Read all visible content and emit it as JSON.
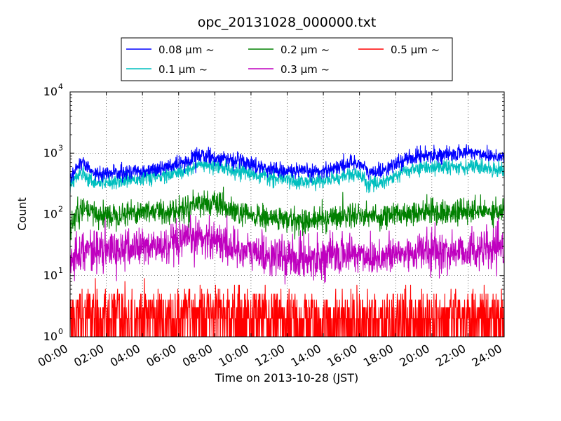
{
  "chart_data": {
    "type": "line",
    "title": "opc_20131028_000000.txt",
    "xlabel": "Time on 2013-10-28 (JST)",
    "ylabel": "Count",
    "x_unit": "hour of day",
    "xlim": [
      0,
      24
    ],
    "ylim": [
      1,
      10000
    ],
    "yscale": "log",
    "grid": true,
    "legend_position": "top (above plot)",
    "legend_columns": 3,
    "x_tick_labels": [
      "00:00",
      "02:00",
      "04:00",
      "06:00",
      "08:00",
      "10:00",
      "12:00",
      "14:00",
      "16:00",
      "18:00",
      "20:00",
      "22:00",
      "24:00"
    ],
    "y_tick_labels": [
      {
        "base": "10",
        "exp": "0"
      },
      {
        "base": "10",
        "exp": "1"
      },
      {
        "base": "10",
        "exp": "2"
      },
      {
        "base": "10",
        "exp": "3"
      },
      {
        "base": "10",
        "exp": "4"
      }
    ],
    "series": [
      {
        "name": "0.08 μm ~",
        "color": "#0000ff",
        "noise": 0.06,
        "x": [
          0,
          0.3,
          0.7,
          1.0,
          1.5,
          2.0,
          2.5,
          3.0,
          3.5,
          4.0,
          4.5,
          5.0,
          5.5,
          6.0,
          6.5,
          7.0,
          7.5,
          8.0,
          8.5,
          9.0,
          9.5,
          10.0,
          10.5,
          11.0,
          11.5,
          12.0,
          12.5,
          13.0,
          13.5,
          14.0,
          14.5,
          15.0,
          15.5,
          16.0,
          16.5,
          17.0,
          17.5,
          18.0,
          18.5,
          19.0,
          19.5,
          20.0,
          20.5,
          21.0,
          21.5,
          22.0,
          22.5,
          23.0,
          23.5,
          24.0
        ],
        "values": [
          380,
          550,
          700,
          550,
          450,
          460,
          480,
          470,
          500,
          520,
          540,
          560,
          600,
          650,
          700,
          950,
          900,
          850,
          800,
          780,
          730,
          660,
          600,
          560,
          530,
          520,
          500,
          490,
          500,
          520,
          560,
          620,
          700,
          690,
          470,
          500,
          560,
          650,
          780,
          860,
          920,
          960,
          940,
          920,
          1000,
          1050,
          1000,
          950,
          900,
          880
        ]
      },
      {
        "name": "0.1 μm ~",
        "color": "#00bfbf",
        "noise": 0.06,
        "x": [
          0,
          0.3,
          0.7,
          1.0,
          1.5,
          2.0,
          2.5,
          3.0,
          3.5,
          4.0,
          4.5,
          5.0,
          5.5,
          6.0,
          6.5,
          7.0,
          7.5,
          8.0,
          8.5,
          9.0,
          9.5,
          10.0,
          10.5,
          11.0,
          11.5,
          12.0,
          12.5,
          13.0,
          13.5,
          14.0,
          14.5,
          15.0,
          15.5,
          16.0,
          16.5,
          17.0,
          17.5,
          18.0,
          18.5,
          19.0,
          19.5,
          20.0,
          20.5,
          21.0,
          21.5,
          22.0,
          22.5,
          23.0,
          23.5,
          24.0
        ],
        "values": [
          290,
          400,
          500,
          380,
          330,
          340,
          360,
          360,
          380,
          400,
          410,
          420,
          440,
          470,
          520,
          650,
          620,
          600,
          570,
          540,
          500,
          460,
          420,
          400,
          380,
          370,
          350,
          340,
          345,
          355,
          380,
          410,
          450,
          430,
          300,
          330,
          360,
          420,
          500,
          550,
          580,
          600,
          590,
          580,
          610,
          620,
          600,
          570,
          550,
          540
        ]
      },
      {
        "name": "0.2 μm ~",
        "color": "#008000",
        "noise": 0.1,
        "x": [
          0,
          0.3,
          0.7,
          1.0,
          1.5,
          2.0,
          2.5,
          3.0,
          3.5,
          4.0,
          4.5,
          5.0,
          5.5,
          6.0,
          6.5,
          7.0,
          7.5,
          8.0,
          8.5,
          9.0,
          9.5,
          10.0,
          10.5,
          11.0,
          11.5,
          12.0,
          12.5,
          13.0,
          13.5,
          14.0,
          14.5,
          15.0,
          15.5,
          16.0,
          16.5,
          17.0,
          17.5,
          18.0,
          18.5,
          19.0,
          19.5,
          20.0,
          20.5,
          21.0,
          21.5,
          22.0,
          22.5,
          23.0,
          23.5,
          24.0
        ],
        "values": [
          70,
          90,
          120,
          110,
          100,
          95,
          100,
          105,
          110,
          112,
          115,
          110,
          112,
          115,
          130,
          160,
          155,
          145,
          130,
          110,
          100,
          95,
          90,
          85,
          85,
          80,
          80,
          78,
          80,
          85,
          90,
          95,
          100,
          100,
          95,
          90,
          95,
          100,
          105,
          110,
          112,
          110,
          108,
          105,
          108,
          110,
          112,
          112,
          115,
          115
        ]
      },
      {
        "name": "0.3 μm ~",
        "color": "#bf00bf",
        "noise": 0.16,
        "x": [
          0,
          0.3,
          0.7,
          1.0,
          1.5,
          2.0,
          2.5,
          3.0,
          3.5,
          4.0,
          4.5,
          5.0,
          5.5,
          6.0,
          6.5,
          7.0,
          7.5,
          8.0,
          8.5,
          9.0,
          9.5,
          10.0,
          10.5,
          11.0,
          11.5,
          12.0,
          12.5,
          13.0,
          13.5,
          14.0,
          14.5,
          15.0,
          15.5,
          16.0,
          16.5,
          17.0,
          17.5,
          18.0,
          18.5,
          19.0,
          19.5,
          20.0,
          20.5,
          21.0,
          21.5,
          22.0,
          22.5,
          23.0,
          23.5,
          24.0
        ],
        "values": [
          18,
          23,
          28,
          27,
          26,
          25,
          26,
          27,
          28,
          30,
          30,
          29,
          30,
          32,
          37,
          43,
          42,
          40,
          34,
          29,
          26,
          24,
          23,
          21,
          20,
          19,
          19,
          19,
          20,
          20,
          21,
          22,
          23,
          22,
          21,
          20,
          21,
          22,
          23,
          24,
          25,
          25,
          24,
          24,
          25,
          26,
          26,
          26,
          26,
          27
        ]
      },
      {
        "name": "0.5 μm ~",
        "color": "#ff0000",
        "noise": 0,
        "discrete": true,
        "x": [
          0,
          1,
          2,
          3,
          4,
          5,
          6,
          7,
          8,
          9,
          10,
          11,
          12,
          13,
          14,
          15,
          16,
          17,
          18,
          19,
          20,
          21,
          22,
          23,
          24
        ],
        "values": [
          2.0,
          2.3,
          2.2,
          2.2,
          2.3,
          2.3,
          2.4,
          2.8,
          2.8,
          2.5,
          2.2,
          2.0,
          1.9,
          1.9,
          1.9,
          2.0,
          2.0,
          2.0,
          2.1,
          2.1,
          2.2,
          2.2,
          2.2,
          2.2,
          2.3
        ]
      }
    ]
  }
}
